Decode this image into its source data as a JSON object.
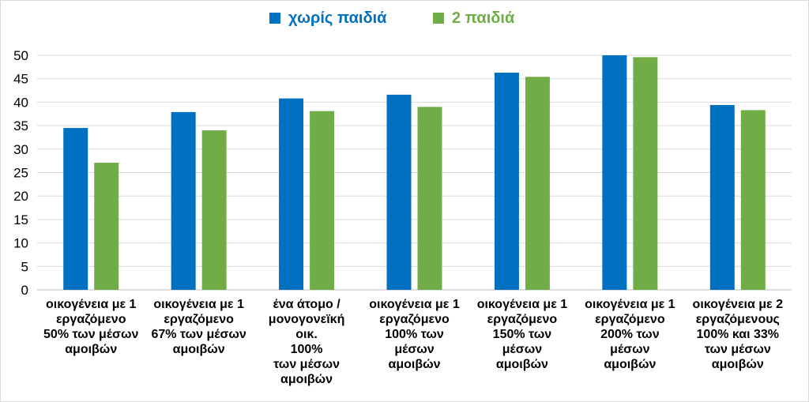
{
  "chart_data": {
    "type": "bar",
    "title": "",
    "xlabel": "",
    "ylabel": "",
    "ylim": [
      0,
      50
    ],
    "yticks": [
      0,
      5,
      10,
      15,
      20,
      25,
      30,
      35,
      40,
      45,
      50
    ],
    "legend_position": "top-center",
    "grid": true,
    "categories": [
      [
        "οικογένεια με 1",
        "εργαζόμενο",
        "50% των μέσων",
        "αμοιβών"
      ],
      [
        "οικογένεια με 1",
        "εργαζόμενο",
        "67% των μέσων",
        "αμοιβών"
      ],
      [
        "ένα άτομο /",
        "μονογονεϊκή",
        "οικ.",
        "100%",
        "των μέσων",
        "αμοιβών"
      ],
      [
        "οικογένεια με 1",
        "εργαζόμενο",
        "100% των",
        "μέσων",
        "αμοιβών"
      ],
      [
        "οικογένεια με 1",
        "εργαζόμενο",
        "150% των",
        "μέσων",
        "αμοιβών"
      ],
      [
        "οικογένεια με 1",
        "εργαζόμενο",
        "200% των",
        "μέσων",
        "αμοιβών"
      ],
      [
        "οικογένεια με 2",
        "εργαζόμενους",
        "100% και 33%",
        "των μέσων",
        "αμοιβών"
      ]
    ],
    "series": [
      {
        "name": "χωρίς παιδιά",
        "color": "#0070c0",
        "values": [
          34.5,
          37.9,
          40.8,
          41.6,
          46.3,
          50.0,
          39.4
        ]
      },
      {
        "name": "2 παιδιά",
        "color": "#70ad47",
        "values": [
          27.1,
          34.0,
          38.1,
          39.0,
          45.4,
          49.6,
          38.3
        ]
      }
    ]
  }
}
